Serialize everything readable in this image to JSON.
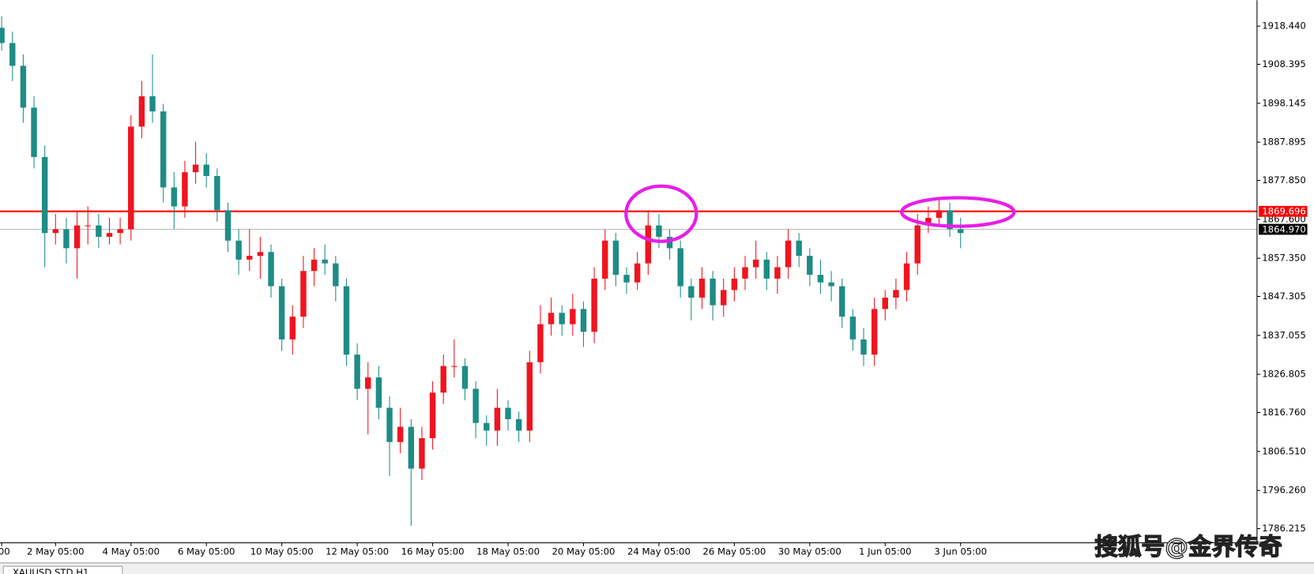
{
  "chart_data": {
    "type": "candlestick",
    "up_color": "#f0141e",
    "down_color": "#1e8c86",
    "categories": [
      "00",
      null,
      null,
      null,
      null,
      "2 May 05:00",
      null,
      null,
      null,
      null,
      null,
      null,
      "4 May 05:00",
      null,
      null,
      null,
      null,
      null,
      null,
      "6 May 05:00",
      null,
      null,
      null,
      null,
      null,
      null,
      "10 May 05:00",
      null,
      null,
      null,
      null,
      null,
      null,
      "12 May 05:00",
      null,
      null,
      null,
      null,
      null,
      null,
      "16 May 05:00",
      null,
      null,
      null,
      null,
      null,
      null,
      "18 May 05:00",
      null,
      null,
      null,
      null,
      null,
      null,
      "20 May 05:00",
      null,
      null,
      null,
      null,
      null,
      null,
      "24 May 05:00",
      null,
      null,
      null,
      null,
      null,
      null,
      "26 May 05:00",
      null,
      null,
      null,
      null,
      null,
      null,
      "30 May 05:00",
      null,
      null,
      null,
      null,
      null,
      null,
      "1 Jun 05:00",
      null,
      null,
      null,
      null,
      null,
      null,
      "3 Jun 05:00"
    ],
    "open": [
      1918,
      1914,
      1908,
      1897,
      1884,
      1864,
      1865,
      1860,
      1866,
      1866,
      1863,
      1864,
      1865,
      1892,
      1900,
      1896,
      1876,
      1871,
      1880,
      1882,
      1879,
      1870,
      1862,
      1857,
      1858,
      1859,
      1850,
      1836,
      1842,
      1854,
      1857,
      1856,
      1850,
      1832,
      1823,
      1826,
      1818,
      1809,
      1813,
      1802,
      1810,
      1822,
      1829,
      1829,
      1823,
      1814,
      1812,
      1818,
      1815,
      1812,
      1830,
      1840,
      1843,
      1840,
      1844,
      1838,
      1852,
      1862,
      1853,
      1851,
      1856,
      1866,
      1863,
      1860,
      1850,
      1847,
      1852,
      1845,
      1849,
      1852,
      1855,
      1857,
      1852,
      1855,
      1862,
      1858,
      1853,
      1851,
      1850,
      1842,
      1836,
      1832,
      1844,
      1847,
      1849,
      1856,
      1866,
      1868,
      1870,
      1865
    ],
    "high": [
      1921,
      1917,
      1911,
      1900,
      1887,
      1869,
      1868,
      1870,
      1871,
      1869,
      1868,
      1868,
      1895,
      1904,
      1911,
      1898,
      1880,
      1883,
      1888,
      1885,
      1881,
      1872,
      1865,
      1865,
      1863,
      1861,
      1852,
      1845,
      1858,
      1860,
      1861,
      1858,
      1852,
      1835,
      1830,
      1829,
      1821,
      1818,
      1815,
      1813,
      1825,
      1832,
      1836,
      1831,
      1825,
      1816,
      1823,
      1820,
      1817,
      1833,
      1845,
      1847,
      1845,
      1848,
      1846,
      1855,
      1865,
      1864,
      1855,
      1859,
      1870,
      1869,
      1865,
      1862,
      1852,
      1855,
      1854,
      1852,
      1855,
      1858,
      1862,
      1859,
      1858,
      1865,
      1864,
      1860,
      1857,
      1854,
      1852,
      1844,
      1839,
      1847,
      1849,
      1852,
      1859,
      1869,
      1871,
      1873,
      1872,
      1868
    ],
    "low": [
      1912,
      1904,
      1893,
      1881,
      1855,
      1861,
      1856,
      1852,
      1861,
      1860,
      1861,
      1861,
      1862,
      1889,
      1893,
      1872,
      1865,
      1868,
      1877,
      1876,
      1867,
      1859,
      1853,
      1854,
      1852,
      1847,
      1833,
      1832,
      1839,
      1850,
      1853,
      1846,
      1829,
      1820,
      1811,
      1815,
      1800,
      1806,
      1787,
      1799,
      1807,
      1819,
      1826,
      1820,
      1810,
      1808,
      1808,
      1812,
      1809,
      1809,
      1827,
      1837,
      1837,
      1837,
      1834,
      1835,
      1849,
      1850,
      1848,
      1849,
      1853,
      1860,
      1857,
      1847,
      1841,
      1844,
      1841,
      1842,
      1846,
      1849,
      1852,
      1849,
      1848,
      1852,
      1855,
      1850,
      1848,
      1846,
      1839,
      1833,
      1829,
      1829,
      1841,
      1844,
      1846,
      1853,
      1864,
      1866,
      1863,
      1860
    ],
    "close": [
      1914,
      1908,
      1897,
      1884,
      1864,
      1865,
      1860,
      1866,
      1866,
      1863,
      1864,
      1865,
      1892,
      1900,
      1896,
      1876,
      1871,
      1880,
      1882,
      1879,
      1870,
      1862,
      1857,
      1858,
      1859,
      1850,
      1836,
      1842,
      1854,
      1857,
      1856,
      1850,
      1832,
      1823,
      1826,
      1818,
      1809,
      1813,
      1802,
      1810,
      1822,
      1829,
      1829,
      1823,
      1814,
      1812,
      1818,
      1815,
      1812,
      1830,
      1840,
      1843,
      1840,
      1844,
      1838,
      1852,
      1862,
      1853,
      1851,
      1856,
      1866,
      1863,
      1860,
      1850,
      1847,
      1852,
      1845,
      1849,
      1852,
      1855,
      1857,
      1852,
      1855,
      1862,
      1858,
      1853,
      1851,
      1850,
      1842,
      1836,
      1832,
      1844,
      1847,
      1849,
      1856,
      1866,
      1868,
      1870,
      1865,
      1864
    ],
    "ylim": [
      1782.47,
      1925.27
    ],
    "yticks": [
      {
        "value": 1918.44,
        "label": "1918.440"
      },
      1908.395,
      1898.145,
      1887.895,
      {
        "value": 1877.85,
        "label": "1877.850"
      },
      {
        "value": 1867.6,
        "label": "1867.600"
      },
      {
        "value": 1857.35,
        "label": "1857.350"
      },
      1847.305,
      1837.055,
      1826.805,
      {
        "value": 1816.76,
        "label": "1816.760"
      },
      {
        "value": 1806.51,
        "label": "1806.510"
      },
      {
        "value": 1796.26,
        "label": "1796.260"
      },
      1786.215
    ],
    "lines": [
      {
        "value": 1864.97,
        "label": "1864.970",
        "color": "#c0c0c0",
        "label_color": "#000000"
      },
      {
        "value": 1869.696,
        "color": "#ff0000",
        "label_color": "#ff0000"
      }
    ],
    "tab": "XAUUSD.STD,H1",
    "watermark": "搜狐号@金界传奇"
  }
}
